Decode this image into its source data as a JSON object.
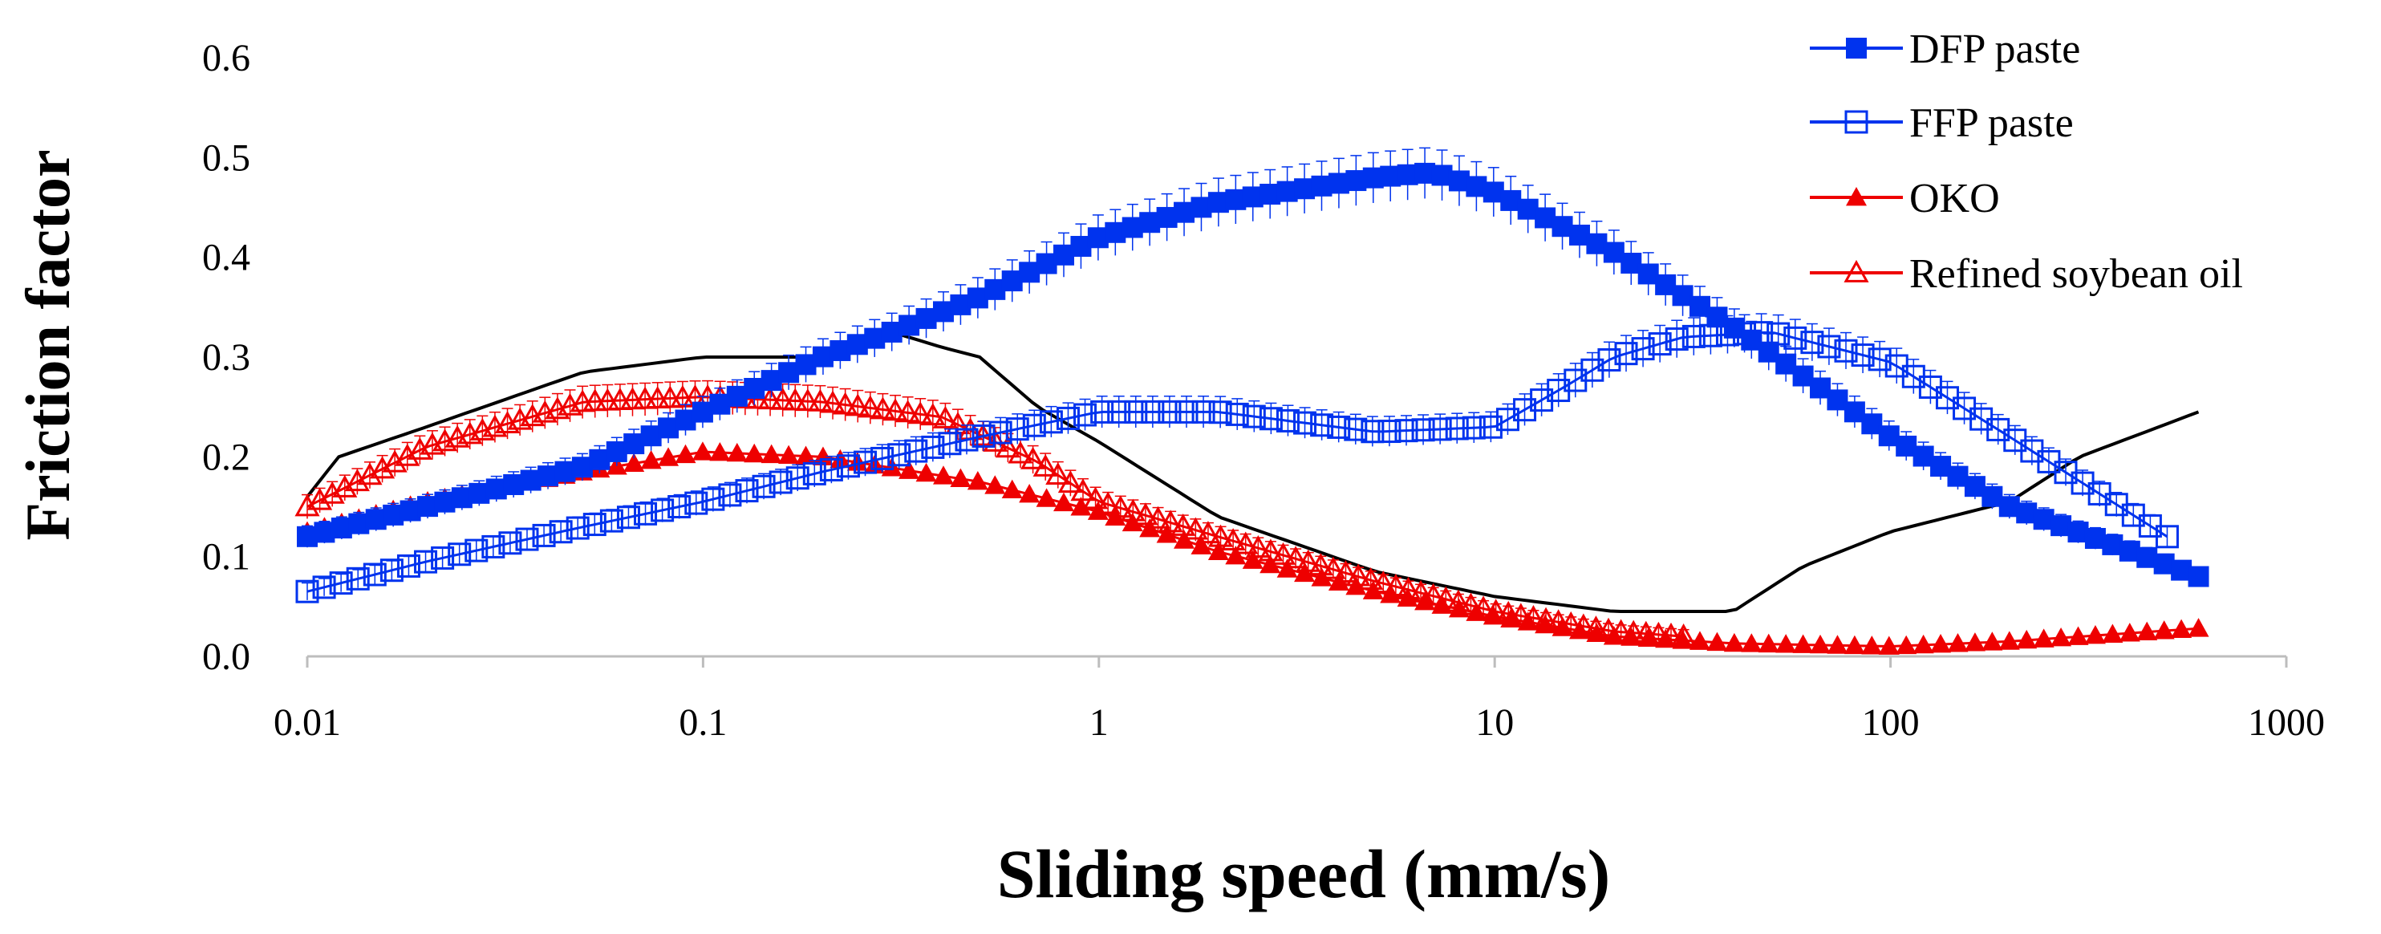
{
  "chart_data": {
    "type": "line",
    "title": "",
    "xlabel": "Sliding speed (mm/s)",
    "ylabel": "Friction factor",
    "x_scale": "log",
    "xlim": [
      0.01,
      1000
    ],
    "ylim": [
      0,
      0.6
    ],
    "x_tick_labels": [
      "0.01",
      "0.1",
      "1",
      "10",
      "100",
      "1000"
    ],
    "x_tick_values": [
      0.01,
      0.1,
      1,
      10,
      100,
      1000
    ],
    "y_tick_labels": [
      "0.0",
      "0.1",
      "0.2",
      "0.3",
      "0.4",
      "0.5",
      "0.6"
    ],
    "y_tick_values": [
      0,
      0.1,
      0.2,
      0.3,
      0.4,
      0.5,
      0.6
    ],
    "legend_position": "top-right",
    "colors": {
      "blue": "#0033ee",
      "red": "#ee0000",
      "black": "#000000"
    },
    "series": [
      {
        "name": "DFP paste",
        "marker": "filled-square",
        "color": "#0033ee",
        "x": [
          0.01,
          0.02,
          0.05,
          0.1,
          0.2,
          0.3,
          0.5,
          1,
          2,
          5,
          7,
          10,
          20,
          40,
          100,
          200,
          600
        ],
        "y": [
          0.12,
          0.15,
          0.19,
          0.245,
          0.3,
          0.325,
          0.36,
          0.42,
          0.455,
          0.48,
          0.485,
          0.465,
          0.405,
          0.33,
          0.22,
          0.15,
          0.08
        ]
      },
      {
        "name": "FFP paste",
        "marker": "open-square",
        "color": "#0033ee",
        "x": [
          0.01,
          0.02,
          0.05,
          0.1,
          0.2,
          0.5,
          1,
          2,
          5,
          10,
          15,
          20,
          30,
          50,
          100,
          200,
          500
        ],
        "y": [
          0.065,
          0.095,
          0.13,
          0.155,
          0.185,
          0.22,
          0.245,
          0.245,
          0.225,
          0.23,
          0.27,
          0.3,
          0.32,
          0.325,
          0.295,
          0.22,
          0.12
        ]
      },
      {
        "name": "OKO",
        "marker": "filled-triangle",
        "color": "#ee0000",
        "x": [
          0.01,
          0.02,
          0.05,
          0.1,
          0.2,
          0.5,
          1,
          2,
          5,
          10,
          20,
          40,
          100,
          200,
          600
        ],
        "y": [
          0.125,
          0.155,
          0.185,
          0.205,
          0.2,
          0.175,
          0.145,
          0.105,
          0.065,
          0.04,
          0.02,
          0.013,
          0.01,
          0.015,
          0.028
        ]
      },
      {
        "name": "Refined soybean oil",
        "marker": "open-triangle",
        "color": "#ee0000",
        "x": [
          0.01,
          0.02,
          0.05,
          0.1,
          0.2,
          0.4,
          0.7,
          1,
          2,
          5,
          10,
          20,
          30
        ],
        "y": [
          0.15,
          0.21,
          0.255,
          0.26,
          0.255,
          0.24,
          0.195,
          0.155,
          0.12,
          0.075,
          0.045,
          0.025,
          0.02
        ]
      },
      {
        "name": "",
        "marker": "none",
        "color": "#000000",
        "x": [
          0.01,
          0.012,
          0.02,
          0.05,
          0.1,
          0.15,
          0.2,
          0.25,
          0.3,
          0.4,
          0.5,
          0.7,
          1,
          2,
          5,
          10,
          20,
          40,
          60,
          100,
          200,
          300,
          600
        ],
        "y": [
          0.16,
          0.2,
          0.23,
          0.285,
          0.3,
          0.3,
          0.3,
          0.315,
          0.325,
          0.31,
          0.3,
          0.25,
          0.215,
          0.14,
          0.085,
          0.06,
          0.045,
          0.045,
          0.09,
          0.125,
          0.155,
          0.2,
          0.245
        ]
      }
    ]
  }
}
